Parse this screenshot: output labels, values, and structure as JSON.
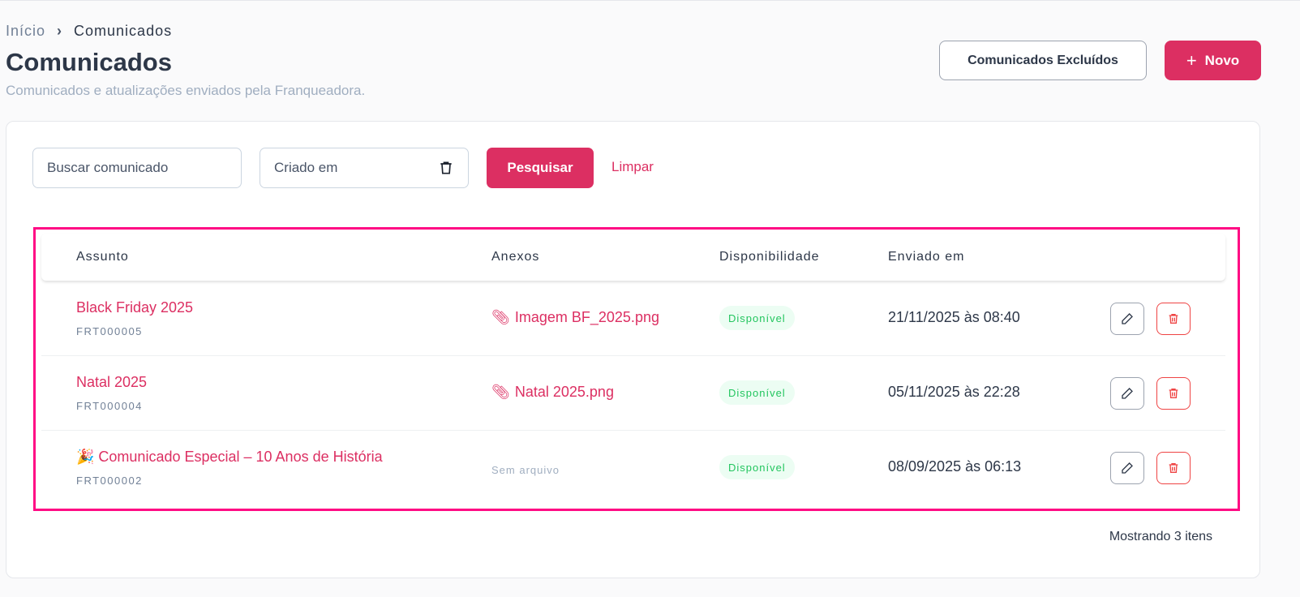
{
  "breadcrumb": {
    "home": "Início",
    "current": "Comunicados"
  },
  "header": {
    "title": "Comunicados",
    "subtitle": "Comunicados e atualizações enviados pela Franqueadora.",
    "deleted_button": "Comunicados Excluídos",
    "new_button": "Novo"
  },
  "filters": {
    "search_placeholder": "Buscar comunicado",
    "date_placeholder": "Criado em",
    "search_button": "Pesquisar",
    "clear_link": "Limpar"
  },
  "table": {
    "columns": [
      "Assunto",
      "Anexos",
      "Disponibilidade",
      "Enviado em"
    ],
    "rows": [
      {
        "subject": "Black Friday 2025",
        "code": "FRT000005",
        "attachment": "Imagem BF_2025.png",
        "availability": "Disponível",
        "sent": "21/11/2025 às 08:40"
      },
      {
        "subject": "Natal 2025",
        "code": "FRT000004",
        "attachment": "Natal 2025.png",
        "availability": "Disponível",
        "sent": "05/11/2025 às 22:28"
      },
      {
        "subject": "🎉 Comunicado Especial – 10 Anos de História",
        "code": "FRT000002",
        "attachment": "Sem arquivo",
        "availability": "Disponível",
        "sent": "08/09/2025 às 06:13"
      }
    ]
  },
  "footer": {
    "count": "Mostrando 3 itens"
  },
  "colors": {
    "accent": "#dc2f62",
    "success": "#22c55e",
    "highlight": "#ff0a84"
  }
}
